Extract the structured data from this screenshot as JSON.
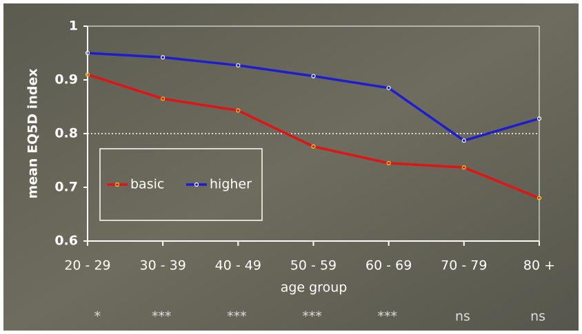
{
  "chart_data": {
    "type": "line",
    "x_label": "age group",
    "y_label": "mean EQ5D index",
    "categories": [
      "20 - 29",
      "30 - 39",
      "40 - 49",
      "50 - 59",
      "60 - 69",
      "70 - 79",
      "80 +"
    ],
    "series": [
      {
        "name": "basic",
        "color": "#e01414",
        "marker_color": "#ffd21e",
        "values": [
          0.91,
          0.865,
          0.843,
          0.776,
          0.745,
          0.737,
          0.68
        ]
      },
      {
        "name": "higher",
        "color": "#1c1cd0",
        "marker_color": "#ffffff",
        "values": [
          0.95,
          0.942,
          0.927,
          0.907,
          0.885,
          0.787,
          0.828
        ]
      }
    ],
    "ylim": [
      0.6,
      1
    ],
    "yticks": [
      0.6,
      0.7,
      0.8,
      0.9,
      1
    ],
    "reference_line": 0.8,
    "significance": [
      "*",
      "***",
      "***",
      "***",
      "***",
      "ns",
      "ns"
    ]
  }
}
